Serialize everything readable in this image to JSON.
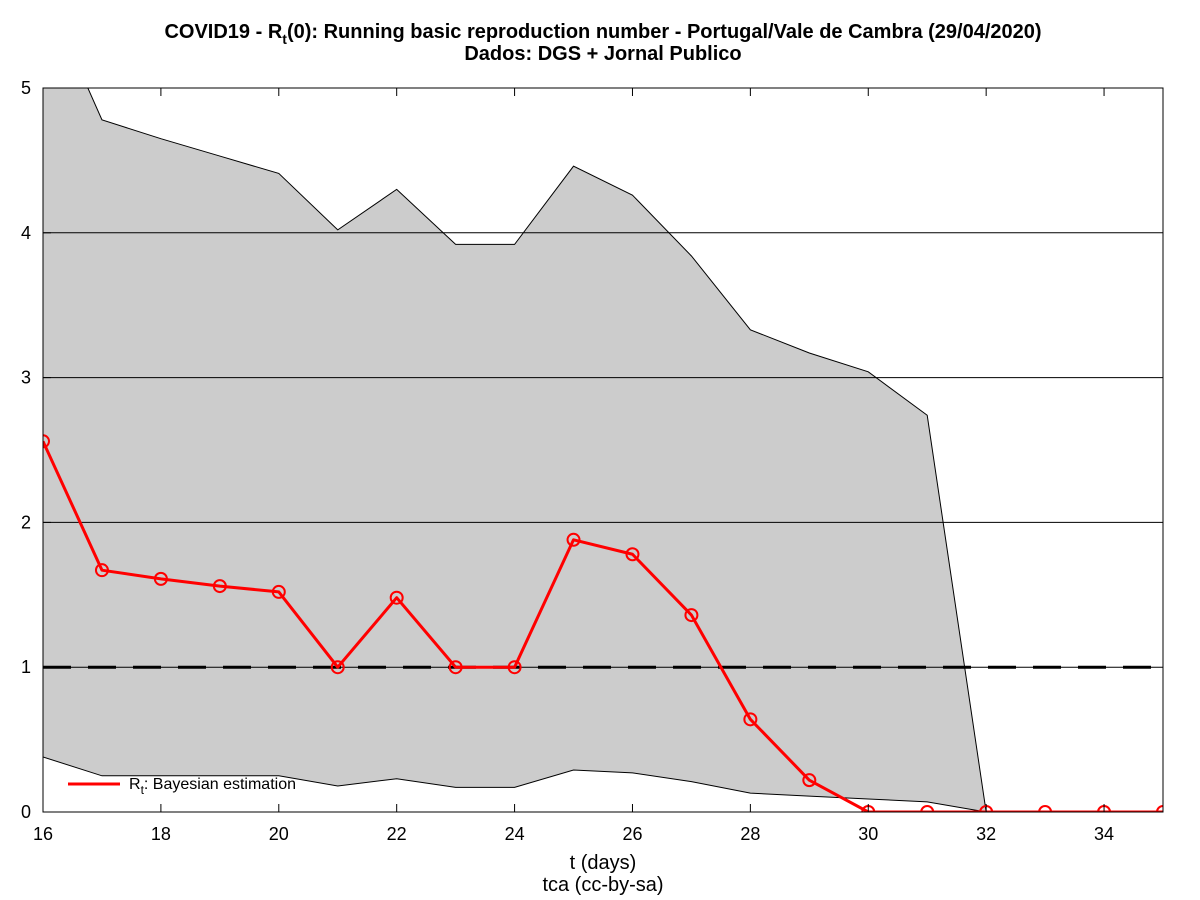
{
  "chart_data": {
    "type": "line",
    "title": {
      "pre": "COVID19 - R",
      "sub": "t",
      "post": "(0): Running basic reproduction number - Portugal/Vale de Cambra (29/04/2020)",
      "line2": "Dados: DGS + Jornal Publico"
    },
    "xlabel": "t (days)",
    "xlabel2": "tca (cc-by-sa)",
    "ylabel": "",
    "xlim": [
      16,
      35
    ],
    "ylim": [
      0,
      5
    ],
    "x_ticks": [
      16,
      18,
      20,
      22,
      24,
      26,
      28,
      30,
      32,
      34
    ],
    "y_ticks": [
      0,
      1,
      2,
      3,
      4,
      5
    ],
    "grid": "horizontal",
    "threshold": 1,
    "legend": {
      "position": "bottom-left",
      "pre": "R",
      "sub": "t",
      "post": ": Bayesian estimation"
    },
    "colors": {
      "estimate": "#ff0000",
      "band": "#cccccc",
      "band_edge": "#000000",
      "threshold": "#000000"
    },
    "series": [
      {
        "name": "Rt: Bayesian estimation",
        "x": [
          16,
          17,
          18,
          19,
          20,
          21,
          22,
          23,
          24,
          25,
          26,
          27,
          28,
          29,
          30,
          31,
          32,
          33,
          34,
          35
        ],
        "values": [
          2.56,
          1.67,
          1.61,
          1.56,
          1.52,
          1.0,
          1.48,
          1.0,
          1.0,
          1.88,
          1.78,
          1.36,
          0.64,
          0.22,
          0.0,
          0.0,
          0.0,
          0.0,
          0.0,
          0.0
        ]
      }
    ],
    "band": {
      "x": [
        16,
        17,
        18,
        19,
        20,
        21,
        22,
        23,
        24,
        25,
        26,
        27,
        28,
        29,
        30,
        31,
        32
      ],
      "upper": [
        5.7,
        4.78,
        4.65,
        4.53,
        4.41,
        4.02,
        4.3,
        3.92,
        3.92,
        4.46,
        4.26,
        3.84,
        3.33,
        3.17,
        3.04,
        2.74,
        0.0
      ],
      "lower": [
        0.38,
        0.25,
        0.25,
        0.25,
        0.25,
        0.18,
        0.23,
        0.17,
        0.17,
        0.29,
        0.27,
        0.21,
        0.13,
        0.11,
        0.09,
        0.07,
        0.0
      ]
    }
  }
}
